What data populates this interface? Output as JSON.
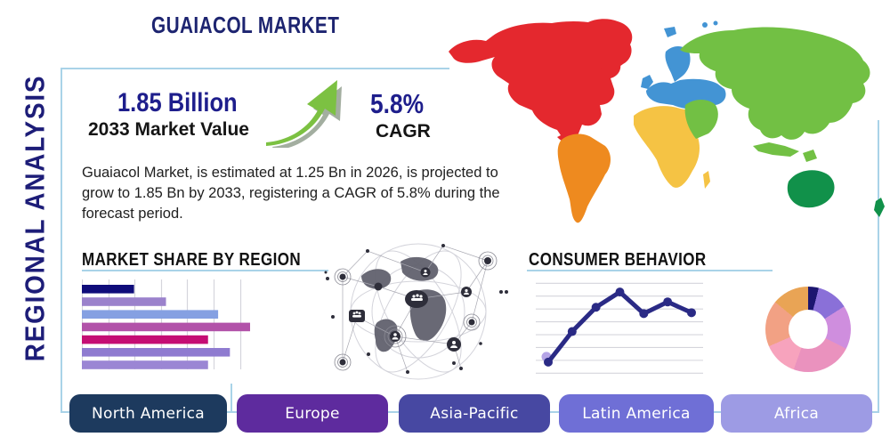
{
  "page": {
    "title": "GUAIACOL MARKET",
    "side_label": "REGIONAL ANALYSIS"
  },
  "stats": {
    "market_value": "1.85 Billion",
    "market_value_label": "2033 Market Value",
    "cagr_value": "5.8%",
    "cagr_label": "CAGR"
  },
  "description": "Guaiacol Market, is estimated at 1.25 Bn in 2026, is projected to grow to 1.85 Bn by 2033, registering a CAGR of 5.8% during the forecast period.",
  "sections": {
    "market_share_title": "MARKET SHARE BY REGION",
    "consumer_behavior_title": "CONSUMER BEHAVIOR"
  },
  "colors": {
    "accent_navy": "#1e1e8c",
    "heading_navy": "#1d2470",
    "panel_border": "#a9d3e8",
    "grid": "#d5d5dc",
    "arrow_green": "#7cc142",
    "arrow_shadow": "#93a08f"
  },
  "map": {
    "colors": {
      "north_america": "#e4282e",
      "south_america": "#ee8a1f",
      "europe": "#4394d4",
      "africa": "#f5c344",
      "asia": "#72c044",
      "oceania": "#11914a"
    }
  },
  "region_buttons": [
    {
      "label": "North America",
      "color": "#1d3a5e"
    },
    {
      "label": "Europe",
      "color": "#5e2b9e"
    },
    {
      "label": "Asia-Pacific",
      "color": "#4748a2"
    },
    {
      "label": "Latin America",
      "color": "#6f6fd6"
    },
    {
      "label": "Africa",
      "color": "#9d9be4"
    }
  ],
  "chart_data": [
    {
      "type": "bar",
      "title": "MARKET SHARE BY REGION",
      "orientation": "horizontal",
      "categories": [
        "bar-1",
        "bar-2",
        "bar-3",
        "bar-4",
        "bar-5",
        "bar-6",
        "bar-7"
      ],
      "values": [
        31,
        50,
        81,
        100,
        75,
        88,
        75
      ],
      "unit": "percent of longest bar",
      "bar_colors": [
        "#0f0c7a",
        "#9b82cc",
        "#85a0e2",
        "#b252a9",
        "#c50d74",
        "#8f7bd0",
        "#9b86d4"
      ],
      "grid": "vertical",
      "xlim": [
        0,
        100
      ]
    },
    {
      "type": "line",
      "title": "CONSUMER BEHAVIOR",
      "x": [
        1,
        2,
        3,
        4,
        5,
        6,
        7
      ],
      "values": [
        12,
        46,
        73,
        90,
        66,
        79,
        67
      ],
      "ylim": [
        0,
        100
      ],
      "line_color": "#2a2a85",
      "first_marker_halo_color": "#b5a4e6",
      "grid": "horizontal",
      "markers": true
    },
    {
      "type": "pie",
      "subtype": "donut",
      "title": "",
      "slices": [
        {
          "label": "slice-1",
          "value": 4,
          "color": "#1c1670"
        },
        {
          "label": "slice-2",
          "value": 12,
          "color": "#8a70d8"
        },
        {
          "label": "slice-3",
          "value": 16.5,
          "color": "#cf8ede"
        },
        {
          "label": "slice-4",
          "value": 23,
          "color": "#ea92be"
        },
        {
          "label": "slice-5",
          "value": 13,
          "color": "#f7a3bd"
        },
        {
          "label": "slice-6",
          "value": 17.5,
          "color": "#f2a184"
        },
        {
          "label": "slice-7",
          "value": 14,
          "color": "#e9a455"
        }
      ]
    }
  ]
}
